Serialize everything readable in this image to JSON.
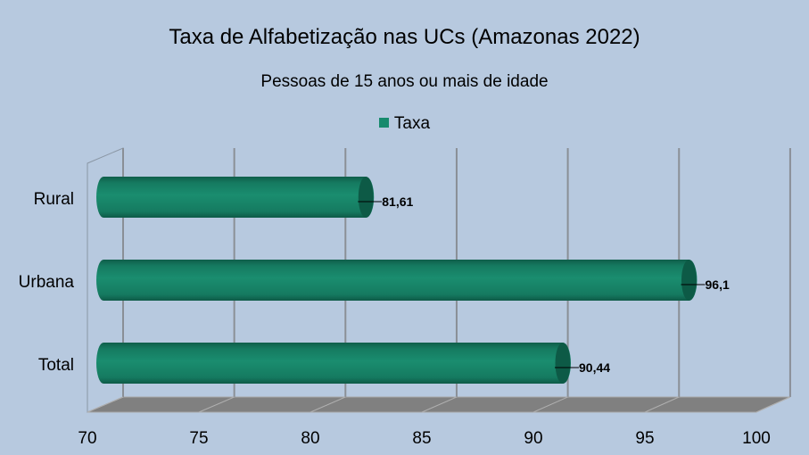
{
  "chart_data": {
    "type": "bar",
    "orientation": "horizontal",
    "style": "3d-cylinder",
    "title": "Taxa de Alfabetização nas UCs (Amazonas 2022)",
    "subtitle": "Pessoas de 15 anos ou mais de idade",
    "categories": [
      "Rural",
      "Urbana",
      "Total"
    ],
    "series": [
      {
        "name": "Taxa",
        "values": [
          81.61,
          96.1,
          90.44
        ],
        "labels": [
          "81,61",
          "96,1",
          "90,44"
        ],
        "color": "#178a6d"
      }
    ],
    "xlim": [
      70,
      100
    ],
    "xticks": [
      "70",
      "75",
      "80",
      "85",
      "90",
      "95",
      "100"
    ],
    "legend": "top",
    "grid": true
  }
}
